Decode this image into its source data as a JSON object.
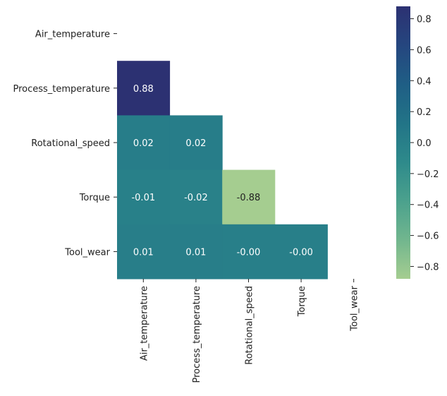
{
  "chart_data": {
    "type": "heatmap",
    "title": "",
    "xlabel": "",
    "ylabel": "",
    "rows": [
      "Air_temperature",
      "Process_temperature",
      "Rotational_speed",
      "Torque",
      "Tool_wear"
    ],
    "columns": [
      "Air_temperature",
      "Process_temperature",
      "Rotational_speed",
      "Torque",
      "Tool_wear"
    ],
    "cells": [
      {
        "row": 1,
        "col": 0,
        "value": 0.88,
        "label": "0.88"
      },
      {
        "row": 2,
        "col": 0,
        "value": 0.02,
        "label": "0.02"
      },
      {
        "row": 2,
        "col": 1,
        "value": 0.02,
        "label": "0.02"
      },
      {
        "row": 3,
        "col": 0,
        "value": -0.01,
        "label": "-0.01"
      },
      {
        "row": 3,
        "col": 1,
        "value": -0.02,
        "label": "-0.02"
      },
      {
        "row": 3,
        "col": 2,
        "value": -0.88,
        "label": "-0.88"
      },
      {
        "row": 4,
        "col": 0,
        "value": 0.01,
        "label": "0.01"
      },
      {
        "row": 4,
        "col": 1,
        "value": 0.01,
        "label": "0.01"
      },
      {
        "row": 4,
        "col": 2,
        "value": -0.0,
        "label": "-0.00"
      },
      {
        "row": 4,
        "col": 3,
        "value": -0.0,
        "label": "-0.00"
      }
    ],
    "mask": "upper triangle including diagonal",
    "colorbar": {
      "colormap": "crest",
      "range": [
        -0.88,
        0.88
      ],
      "ticks": [
        0.8,
        0.6,
        0.4,
        0.2,
        0.0,
        -0.2,
        -0.4,
        -0.6,
        -0.8
      ],
      "tick_labels": [
        "0.8",
        "0.6",
        "0.4",
        "0.2",
        "0.0",
        "−0.2",
        "−0.4",
        "−0.6",
        "−0.8"
      ],
      "colors": [
        "#a5cd90",
        "#71b68e",
        "#4ba18d",
        "#2e8a8b",
        "#227487",
        "#1f5e85",
        "#25467f",
        "#2c3172"
      ]
    },
    "grid": false
  }
}
